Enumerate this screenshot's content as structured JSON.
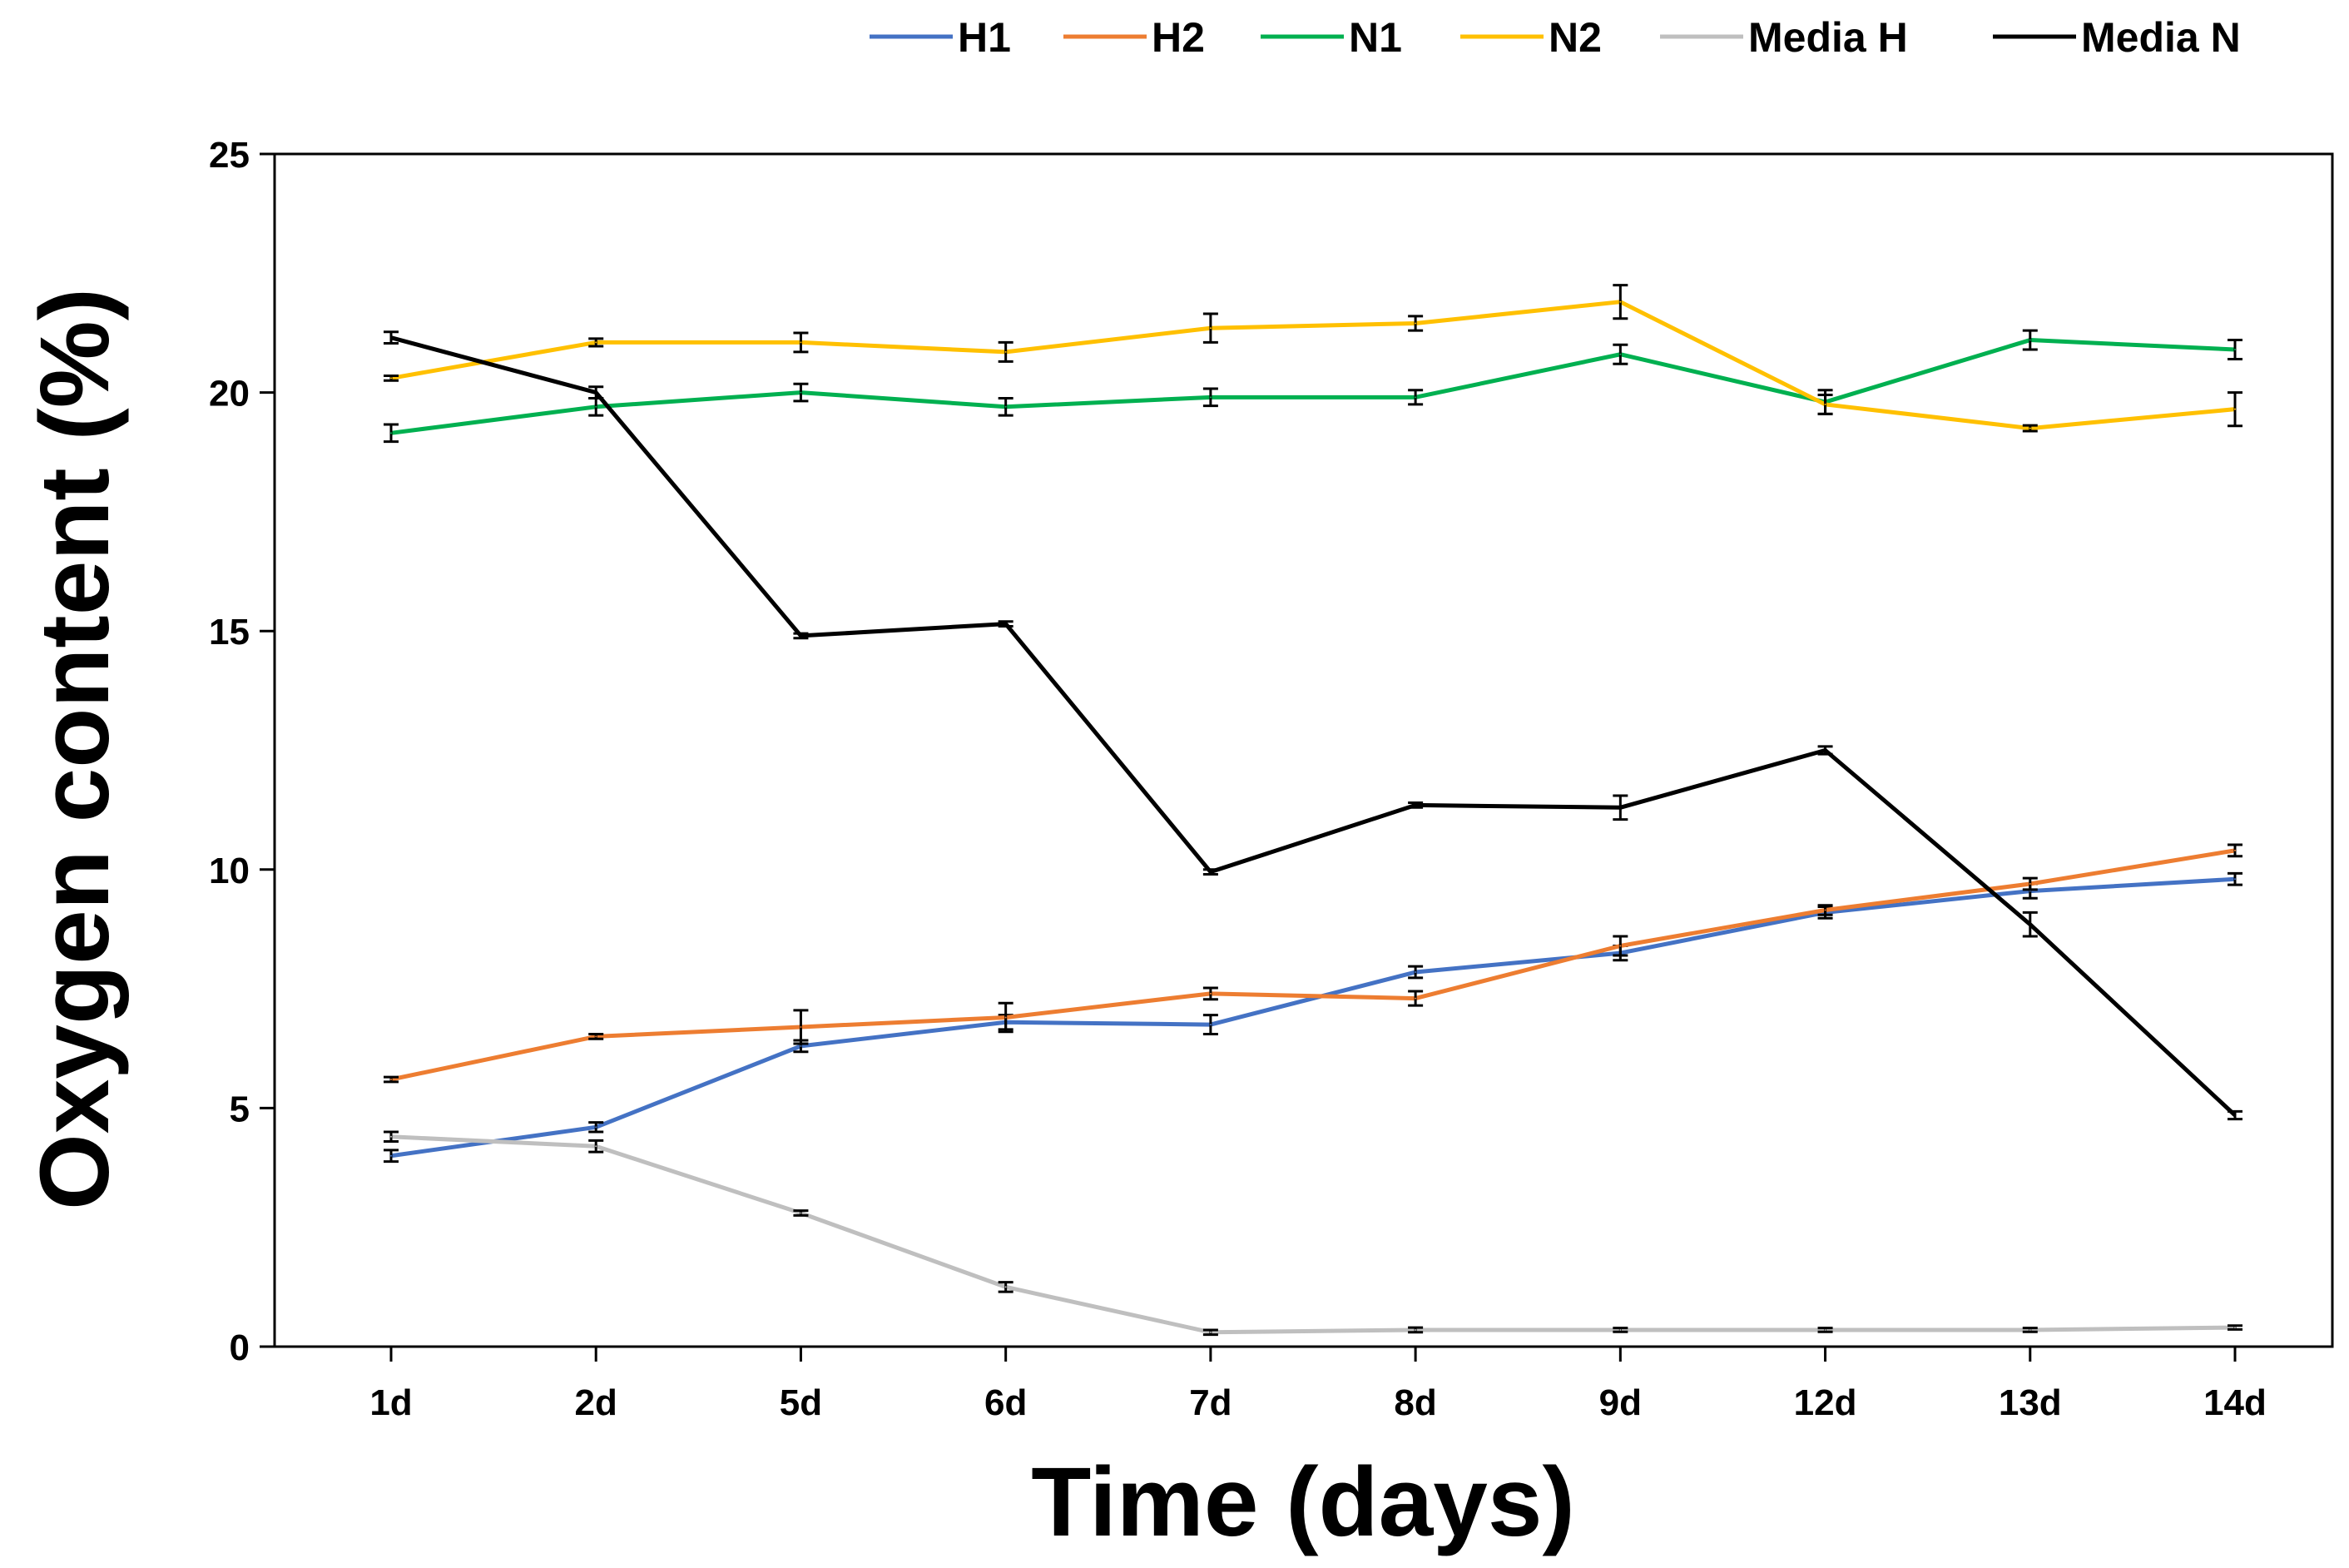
{
  "chart_data": {
    "type": "line",
    "title": "",
    "xlabel": "Time (days)",
    "ylabel": "Oxygen content (%)",
    "categories": [
      "1d",
      "2d",
      "5d",
      "6d",
      "7d",
      "8d",
      "9d",
      "12d",
      "13d",
      "14d"
    ],
    "ylim": [
      0,
      25
    ],
    "yticks": [
      0,
      5,
      10,
      15,
      20,
      25
    ],
    "grid": false,
    "legend_position": "top",
    "series": [
      {
        "name": "H1",
        "color": "#4472C4",
        "values": [
          4.0,
          4.6,
          6.3,
          6.8,
          6.75,
          7.85,
          8.25,
          9.1,
          9.55,
          9.8
        ],
        "errors": [
          0.12,
          0.1,
          0.12,
          0.15,
          0.2,
          0.12,
          0.15,
          0.12,
          0.15,
          0.12
        ]
      },
      {
        "name": "H2",
        "color": "#ED7D31",
        "values": [
          5.6,
          6.5,
          6.7,
          6.9,
          7.4,
          7.3,
          8.4,
          9.15,
          9.7,
          10.4
        ],
        "errors": [
          0.05,
          0.05,
          0.35,
          0.3,
          0.12,
          0.15,
          0.2,
          0.1,
          0.12,
          0.12
        ]
      },
      {
        "name": "N1",
        "color": "#00B050",
        "values": [
          19.15,
          19.7,
          20.0,
          19.7,
          19.9,
          19.9,
          20.8,
          19.8,
          21.1,
          20.9
        ],
        "errors": [
          0.18,
          0.18,
          0.18,
          0.18,
          0.18,
          0.15,
          0.2,
          0.25,
          0.2,
          0.2
        ]
      },
      {
        "name": "N2",
        "color": "#FFC000",
        "values": [
          20.3,
          21.05,
          21.05,
          20.85,
          21.35,
          21.45,
          21.9,
          19.75,
          19.25,
          19.65
        ],
        "errors": [
          0.05,
          0.08,
          0.2,
          0.2,
          0.3,
          0.15,
          0.35,
          0.2,
          0.06,
          0.35
        ]
      },
      {
        "name": "Media H",
        "color": "#BFBFBF",
        "values": [
          4.4,
          4.2,
          2.8,
          1.25,
          0.3,
          0.35,
          0.35,
          0.35,
          0.35,
          0.4
        ],
        "errors": [
          0.1,
          0.12,
          0.05,
          0.1,
          0.05,
          0.05,
          0.04,
          0.04,
          0.04,
          0.04
        ]
      },
      {
        "name": "Media N",
        "color": "#000000",
        "values": [
          21.15,
          20.0,
          14.9,
          15.15,
          9.95,
          11.35,
          11.3,
          12.5,
          8.85,
          4.85
        ],
        "errors": [
          0.12,
          0.12,
          0.05,
          0.05,
          0.05,
          0.05,
          0.25,
          0.08,
          0.25,
          0.08
        ]
      }
    ]
  }
}
